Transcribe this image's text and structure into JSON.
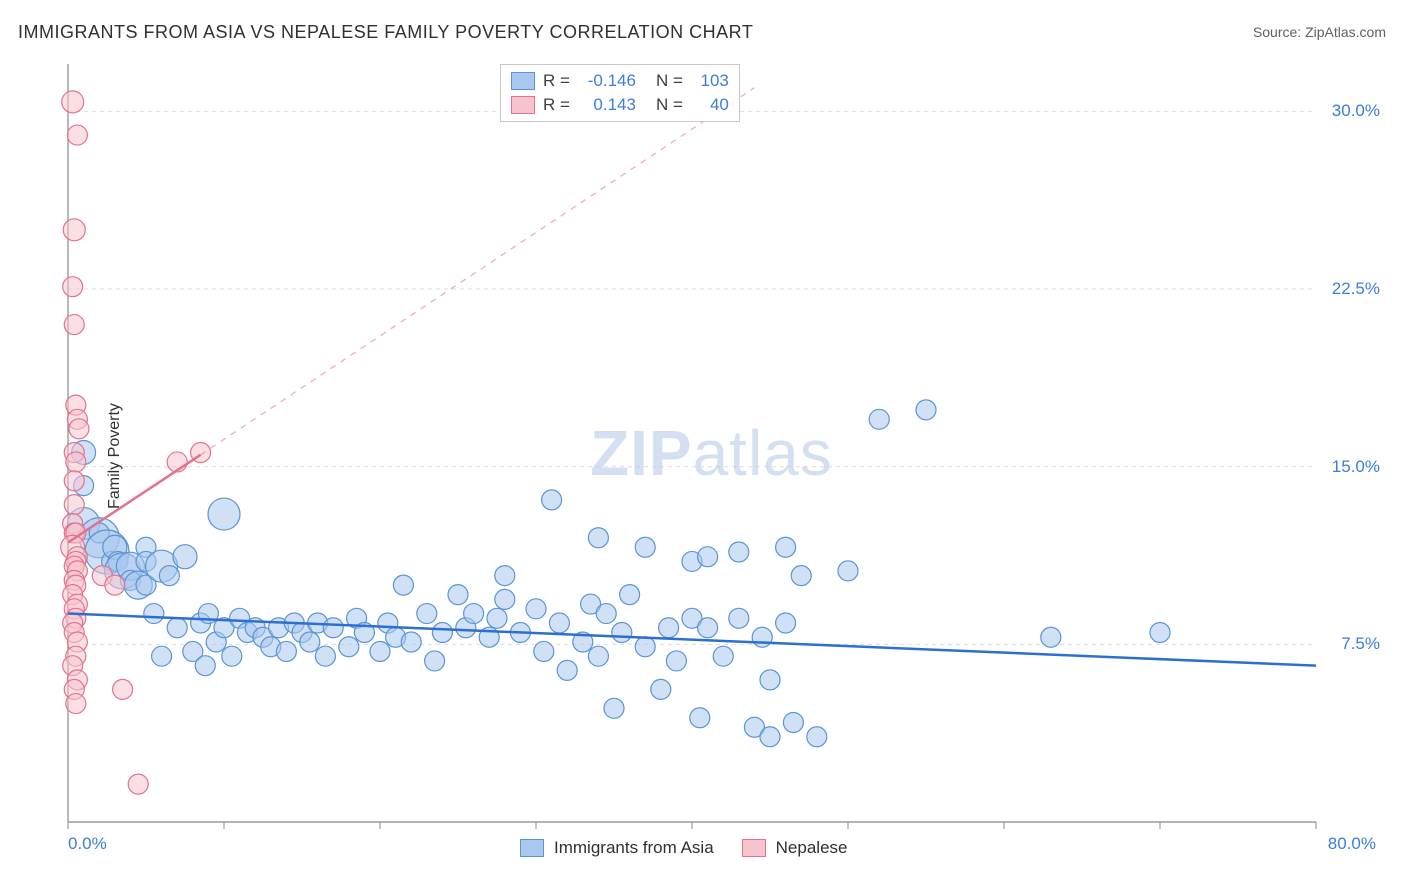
{
  "title": "IMMIGRANTS FROM ASIA VS NEPALESE FAMILY POVERTY CORRELATION CHART",
  "source_label": "Source: ZipAtlas.com",
  "watermark_zip": "ZIP",
  "watermark_atlas": "atlas",
  "ylabel": "Family Poverty",
  "chart": {
    "type": "scatter",
    "background_color": "#ffffff",
    "grid_color": "#dcdcdc",
    "axis_color": "#888888",
    "tick_color": "#888888",
    "xlim": [
      0,
      80
    ],
    "ylim": [
      0,
      32
    ],
    "x_tick_positions": [
      0,
      10,
      20,
      30,
      40,
      50,
      60,
      70,
      80
    ],
    "x_tick_labels_shown": {
      "0": "0.0%",
      "80": "80.0%"
    },
    "y_grid_positions": [
      7.5,
      15.0,
      22.5,
      30.0
    ],
    "y_tick_labels": [
      "7.5%",
      "15.0%",
      "22.5%",
      "30.0%"
    ],
    "series": [
      {
        "name": "Immigrants from Asia",
        "fill_color": "#a9c8ed",
        "stroke_color": "#5a94d6",
        "fill_opacity": 0.55,
        "marker_radius": 10,
        "trend_line": {
          "color": "#2d6fd0",
          "width": 2.5,
          "x1": 0,
          "y1": 8.8,
          "x2": 80,
          "y2": 6.6,
          "dash_extension": false
        },
        "R": "-0.146",
        "N": "103",
        "points": [
          [
            1,
            15.6,
            12
          ],
          [
            1,
            14.2,
            10
          ],
          [
            1,
            12.6,
            16
          ],
          [
            2,
            12.0,
            20
          ],
          [
            2,
            12.2,
            10
          ],
          [
            2.5,
            11.4,
            22
          ],
          [
            2.8,
            11.0,
            10
          ],
          [
            3,
            11.6,
            12
          ],
          [
            3.2,
            11.0,
            10
          ],
          [
            3.5,
            10.6,
            18
          ],
          [
            4,
            10.8,
            14
          ],
          [
            4,
            10.2,
            10
          ],
          [
            4.5,
            10.0,
            14
          ],
          [
            5,
            10.0,
            10
          ],
          [
            5,
            11.6,
            10
          ],
          [
            5,
            11.0,
            10
          ],
          [
            5.5,
            8.8,
            10
          ],
          [
            6,
            10.8,
            16
          ],
          [
            6,
            7.0,
            10
          ],
          [
            6.5,
            10.4,
            10
          ],
          [
            7,
            8.2,
            10
          ],
          [
            7.5,
            11.2,
            12
          ],
          [
            8,
            7.2,
            10
          ],
          [
            8.5,
            8.4,
            10
          ],
          [
            8.8,
            6.6,
            10
          ],
          [
            9,
            8.8,
            10
          ],
          [
            9.5,
            7.6,
            10
          ],
          [
            10,
            8.2,
            10
          ],
          [
            10,
            13.0,
            16
          ],
          [
            10.5,
            7.0,
            10
          ],
          [
            11,
            8.6,
            10
          ],
          [
            11.5,
            8.0,
            10
          ],
          [
            12,
            8.2,
            10
          ],
          [
            12.5,
            7.8,
            10
          ],
          [
            13,
            7.4,
            10
          ],
          [
            13.5,
            8.2,
            10
          ],
          [
            14,
            7.2,
            10
          ],
          [
            14.5,
            8.4,
            10
          ],
          [
            15,
            8.0,
            10
          ],
          [
            15.5,
            7.6,
            10
          ],
          [
            16,
            8.4,
            10
          ],
          [
            16.5,
            7.0,
            10
          ],
          [
            17,
            8.2,
            10
          ],
          [
            18,
            7.4,
            10
          ],
          [
            18.5,
            8.6,
            10
          ],
          [
            19,
            8.0,
            10
          ],
          [
            20,
            7.2,
            10
          ],
          [
            20.5,
            8.4,
            10
          ],
          [
            21,
            7.8,
            10
          ],
          [
            21.5,
            10.0,
            10
          ],
          [
            22,
            7.6,
            10
          ],
          [
            23,
            8.8,
            10
          ],
          [
            23.5,
            6.8,
            10
          ],
          [
            24,
            8.0,
            10
          ],
          [
            25,
            9.6,
            10
          ],
          [
            25.5,
            8.2,
            10
          ],
          [
            26,
            8.8,
            10
          ],
          [
            27,
            7.8,
            10
          ],
          [
            27.5,
            8.6,
            10
          ],
          [
            28,
            9.4,
            10
          ],
          [
            28,
            10.4,
            10
          ],
          [
            29,
            8.0,
            10
          ],
          [
            30,
            9.0,
            10
          ],
          [
            30.5,
            7.2,
            10
          ],
          [
            31,
            13.6,
            10
          ],
          [
            31.5,
            8.4,
            10
          ],
          [
            32,
            6.4,
            10
          ],
          [
            33,
            7.6,
            10
          ],
          [
            33.5,
            9.2,
            10
          ],
          [
            34,
            7.0,
            10
          ],
          [
            34.5,
            8.8,
            10
          ],
          [
            34,
            12.0,
            10
          ],
          [
            35,
            4.8,
            10
          ],
          [
            35.5,
            8.0,
            10
          ],
          [
            36,
            9.6,
            10
          ],
          [
            37,
            7.4,
            10
          ],
          [
            37,
            11.6,
            10
          ],
          [
            38,
            5.6,
            10
          ],
          [
            38.5,
            8.2,
            10
          ],
          [
            39,
            6.8,
            10
          ],
          [
            40,
            8.6,
            10
          ],
          [
            40,
            11.0,
            10
          ],
          [
            40.5,
            4.4,
            10
          ],
          [
            41,
            8.2,
            10
          ],
          [
            41,
            11.2,
            10
          ],
          [
            42,
            7.0,
            10
          ],
          [
            43,
            8.6,
            10
          ],
          [
            43,
            11.4,
            10
          ],
          [
            44,
            4.0,
            10
          ],
          [
            44.5,
            7.8,
            10
          ],
          [
            45,
            6.0,
            10
          ],
          [
            45,
            3.6,
            10
          ],
          [
            46,
            8.4,
            10
          ],
          [
            46,
            11.6,
            10
          ],
          [
            46.5,
            4.2,
            10
          ],
          [
            47,
            10.4,
            10
          ],
          [
            48,
            3.6,
            10
          ],
          [
            50,
            10.6,
            10
          ],
          [
            52,
            17.0,
            10
          ],
          [
            55,
            17.4,
            10
          ],
          [
            63,
            7.8,
            10
          ],
          [
            70,
            8.0,
            10
          ]
        ]
      },
      {
        "name": "Nepalese",
        "fill_color": "#f6c4cf",
        "stroke_color": "#e4718e",
        "fill_opacity": 0.55,
        "marker_radius": 10,
        "trend_line": {
          "color": "#e4718e",
          "width": 2.5,
          "x1": 0,
          "y1": 11.8,
          "x2": 8.5,
          "y2": 15.5,
          "dash_extension": true,
          "dash_x2": 44,
          "dash_y2": 31
        },
        "R": "0.143",
        "N": "40",
        "points": [
          [
            0.3,
            30.4,
            11
          ],
          [
            0.6,
            29.0,
            10
          ],
          [
            0.4,
            25.0,
            11
          ],
          [
            0.3,
            22.6,
            10
          ],
          [
            0.4,
            21.0,
            10
          ],
          [
            0.5,
            17.6,
            10
          ],
          [
            0.6,
            17.0,
            10
          ],
          [
            0.7,
            16.6,
            10
          ],
          [
            0.4,
            15.6,
            10
          ],
          [
            0.5,
            15.2,
            10
          ],
          [
            0.4,
            14.4,
            10
          ],
          [
            0.4,
            13.4,
            10
          ],
          [
            0.3,
            12.6,
            10
          ],
          [
            0.4,
            12.2,
            10
          ],
          [
            0.5,
            12.2,
            10
          ],
          [
            0.3,
            11.6,
            12
          ],
          [
            0.6,
            11.2,
            10
          ],
          [
            0.5,
            11.0,
            10
          ],
          [
            0.4,
            10.8,
            10
          ],
          [
            0.6,
            10.6,
            10
          ],
          [
            0.4,
            10.2,
            10
          ],
          [
            0.5,
            10.0,
            10
          ],
          [
            0.3,
            9.6,
            10
          ],
          [
            0.6,
            9.2,
            10
          ],
          [
            0.4,
            9.0,
            10
          ],
          [
            0.5,
            8.6,
            10
          ],
          [
            0.3,
            8.4,
            10
          ],
          [
            0.4,
            8.0,
            10
          ],
          [
            0.6,
            7.6,
            10
          ],
          [
            0.5,
            7.0,
            10
          ],
          [
            0.3,
            6.6,
            10
          ],
          [
            0.6,
            6.0,
            10
          ],
          [
            0.4,
            5.6,
            10
          ],
          [
            0.5,
            5.0,
            10
          ],
          [
            2.2,
            10.4,
            10
          ],
          [
            3.0,
            10.0,
            10
          ],
          [
            3.5,
            5.6,
            10
          ],
          [
            4.5,
            1.6,
            10
          ],
          [
            7.0,
            15.2,
            10
          ],
          [
            8.5,
            15.6,
            10
          ]
        ]
      }
    ]
  },
  "legend_top": {
    "R_label": "R",
    "N_label": "N",
    "eq": "="
  },
  "legend_bottom": {
    "items": [
      {
        "label": "Immigrants from Asia",
        "fill": "#a9c8ed",
        "stroke": "#5a94d6"
      },
      {
        "label": "Nepalese",
        "fill": "#f6c4cf",
        "stroke": "#e4718e"
      }
    ]
  }
}
